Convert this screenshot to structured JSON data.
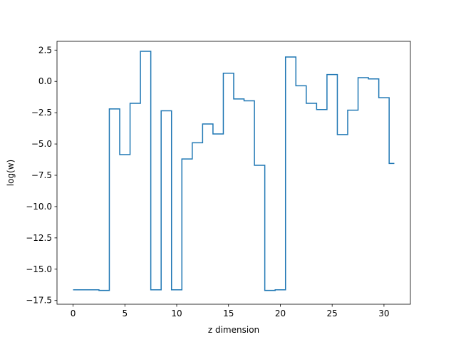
{
  "chart_data": {
    "type": "line",
    "drawstyle": "steps-mid",
    "xlabel": "z dimension",
    "ylabel": "log(w)",
    "xlim": [
      -1.55,
      32.55
    ],
    "ylim": [
      -17.8,
      3.2
    ],
    "xticks": [
      0,
      5,
      10,
      15,
      20,
      25,
      30
    ],
    "xtick_labels": [
      "0",
      "5",
      "10",
      "15",
      "20",
      "25",
      "30"
    ],
    "yticks": [
      2.5,
      0.0,
      -2.5,
      -5.0,
      -7.5,
      -10.0,
      -12.5,
      -15.0,
      -17.5
    ],
    "ytick_labels": [
      "2.5",
      "0.0",
      "−2.5",
      "−5.0",
      "−7.5",
      "−10.0",
      "−12.5",
      "−15.0",
      "−17.5"
    ],
    "grid": false,
    "color": "#1f77b4",
    "series": [
      {
        "name": "",
        "x": [
          0,
          1,
          2,
          3,
          4,
          5,
          6,
          7,
          8,
          9,
          10,
          11,
          12,
          13,
          14,
          15,
          16,
          17,
          18,
          19,
          20,
          21,
          22,
          23,
          24,
          25,
          26,
          27,
          28,
          29,
          30,
          31
        ],
        "y": [
          -16.65,
          -16.65,
          -16.65,
          -16.7,
          -2.2,
          -5.85,
          -1.75,
          2.4,
          -16.65,
          -2.35,
          -16.65,
          -6.2,
          -4.9,
          -3.4,
          -4.2,
          0.65,
          -1.4,
          -1.55,
          -6.7,
          -16.7,
          -16.65,
          1.95,
          -0.35,
          -1.75,
          -2.25,
          0.55,
          -4.25,
          -2.3,
          0.3,
          0.2,
          -1.3,
          -6.55
        ]
      }
    ]
  }
}
